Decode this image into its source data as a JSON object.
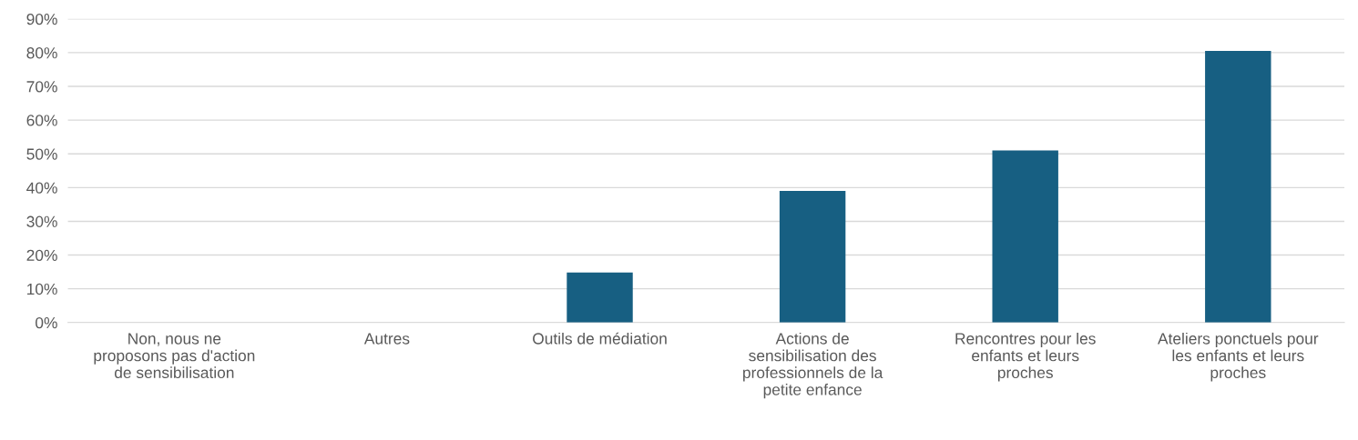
{
  "chart_data": {
    "type": "bar",
    "categories": [
      "Non, nous ne\nproposons pas d'action\nde sensibilisation",
      "Autres",
      "Outils de médiation",
      "Actions de\nsensibilisation des\nprofessionnels de la\npetite enfance",
      "Rencontres pour les\nenfants et leurs\nproches",
      "Ateliers ponctuels pour\nles enfants et leurs\nproches"
    ],
    "values": [
      0,
      0,
      14.8,
      39,
      51,
      80.5
    ],
    "color": "#175f82",
    "ylim": [
      0,
      90
    ],
    "yticks": [
      {
        "value": 0,
        "label": "0%"
      },
      {
        "value": 10,
        "label": "10%"
      },
      {
        "value": 20,
        "label": "20%"
      },
      {
        "value": 30,
        "label": "30%"
      },
      {
        "value": 40,
        "label": "40%"
      },
      {
        "value": 50,
        "label": "50%"
      },
      {
        "value": 60,
        "label": "60%"
      },
      {
        "value": 70,
        "label": "70%"
      },
      {
        "value": 80,
        "label": "80%"
      },
      {
        "value": 90,
        "label": "90%"
      }
    ],
    "grid": "y"
  }
}
